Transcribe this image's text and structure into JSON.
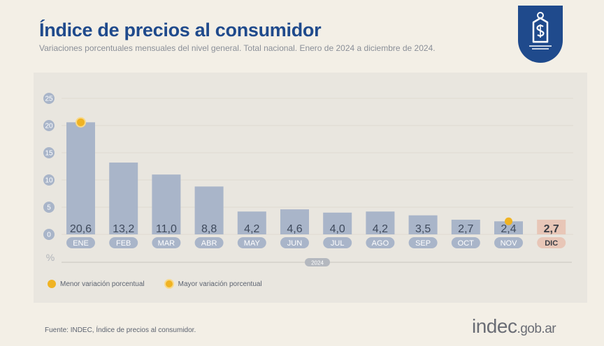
{
  "header": {
    "title": "Índice de precios al consumidor",
    "subtitle": "Variaciones porcentuales mensuales del nivel general. Total nacional. Enero de 2024 a diciembre de 2024."
  },
  "legend": {
    "min_label": "Menor variación porcentual",
    "max_label": "Mayor variación porcentual"
  },
  "footer": {
    "source": "Fuente: INDEC, Índice de precios al consumidor.",
    "brand_main": "indec",
    "brand_suffix": ".gob.ar"
  },
  "colors": {
    "brand_blue": "#1f4a8c",
    "bar": "#a9b5c9",
    "bar_highlight": "#e8c6b7",
    "marker": "#f0b323"
  },
  "icons": [
    "dollar-tag-icon"
  ],
  "chart_data": {
    "type": "bar",
    "categories": [
      "ENE",
      "FEB",
      "MAR",
      "ABR",
      "MAY",
      "JUN",
      "JUL",
      "AGO",
      "SEP",
      "OCT",
      "NOV",
      "DIC"
    ],
    "values": [
      20.6,
      13.2,
      11.0,
      8.8,
      4.2,
      4.6,
      4.0,
      4.2,
      3.5,
      2.7,
      2.4,
      2.7
    ],
    "value_labels": [
      "20,6",
      "13,2",
      "11,0",
      "8,8",
      "4,2",
      "4,6",
      "4,0",
      "4,2",
      "3,5",
      "2,7",
      "2,4",
      "2,7"
    ],
    "year_label": "2024",
    "ylabel": "%",
    "yticks": [
      0,
      5,
      10,
      15,
      20,
      25
    ],
    "ylim": [
      0,
      25
    ],
    "grid": true,
    "legend_position": "bottom-left",
    "highlight_index": 11,
    "max_marker_index": 0,
    "min_marker_index": 10
  }
}
